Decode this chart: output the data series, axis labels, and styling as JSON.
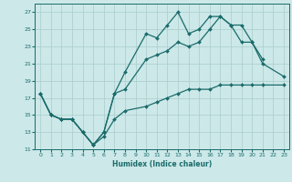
{
  "xlabel": "Humidex (Indice chaleur)",
  "bg_color": "#cce8e8",
  "grid_color": "#aacccc",
  "line_color": "#1a6b6b",
  "xlim": [
    -0.5,
    23.5
  ],
  "ylim": [
    11,
    28
  ],
  "xticks": [
    0,
    1,
    2,
    3,
    4,
    5,
    6,
    7,
    8,
    9,
    10,
    11,
    12,
    13,
    14,
    15,
    16,
    17,
    18,
    19,
    20,
    21,
    22,
    23
  ],
  "yticks": [
    11,
    13,
    15,
    17,
    19,
    21,
    23,
    25,
    27
  ],
  "line1_x": [
    0,
    1,
    2,
    3,
    4,
    5,
    6,
    7,
    8,
    10,
    11,
    12,
    13,
    14,
    15,
    16,
    17,
    18,
    19,
    20,
    21
  ],
  "line1_y": [
    17.5,
    15.0,
    14.5,
    14.5,
    13.0,
    11.5,
    13.0,
    17.5,
    20.0,
    24.5,
    24.0,
    25.5,
    27.0,
    24.5,
    25.0,
    26.5,
    26.5,
    25.5,
    25.5,
    23.5,
    21.5
  ],
  "line2_x": [
    0,
    1,
    2,
    3,
    4,
    5,
    6,
    7,
    8,
    10,
    11,
    12,
    13,
    14,
    15,
    16,
    17,
    18,
    19,
    20,
    21,
    23
  ],
  "line2_y": [
    17.5,
    15.0,
    14.5,
    14.5,
    13.0,
    11.5,
    13.0,
    17.5,
    18.0,
    21.5,
    22.0,
    22.5,
    23.5,
    23.0,
    23.5,
    25.0,
    26.5,
    25.5,
    23.5,
    23.5,
    21.0,
    19.5
  ],
  "line3_x": [
    0,
    1,
    2,
    3,
    4,
    5,
    6,
    7,
    8,
    10,
    11,
    12,
    13,
    14,
    15,
    16,
    17,
    18,
    19,
    20,
    21,
    23
  ],
  "line3_y": [
    17.5,
    15.0,
    14.5,
    14.5,
    13.0,
    11.5,
    12.5,
    14.5,
    15.5,
    16.0,
    16.5,
    17.0,
    17.5,
    18.0,
    18.0,
    18.0,
    18.5,
    18.5,
    18.5,
    18.5,
    18.5,
    18.5
  ]
}
